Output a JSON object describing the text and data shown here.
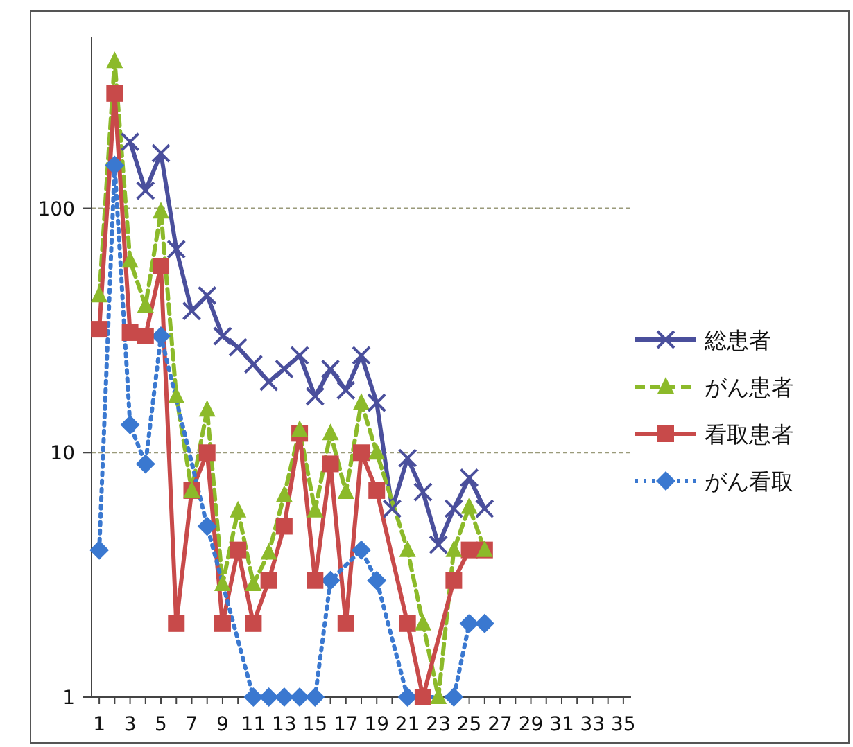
{
  "chart_data": {
    "type": "line",
    "log": "y",
    "ylim": [
      1,
      500
    ],
    "yticks": [
      1,
      10,
      100
    ],
    "xlim": [
      0.5,
      35.5
    ],
    "xticks": [
      1,
      {
        "value": 2,
        "label": null
      },
      3,
      {
        "value": 4,
        "label": null
      },
      5,
      {
        "value": 6,
        "label": null
      },
      7,
      {
        "value": 8,
        "label": null
      },
      9,
      {
        "value": 10,
        "label": null
      },
      11,
      {
        "value": 12,
        "label": null
      },
      13,
      {
        "value": 14,
        "label": null
      },
      15,
      {
        "value": 16,
        "label": null
      },
      17,
      {
        "value": 18,
        "label": null
      },
      19,
      {
        "value": 20,
        "label": null
      },
      21,
      {
        "value": 22,
        "label": null
      },
      23,
      {
        "value": 24,
        "label": null
      },
      25,
      {
        "value": 26,
        "label": null
      },
      27,
      {
        "value": 28,
        "label": null
      },
      29,
      {
        "value": 30,
        "label": null
      },
      31,
      {
        "value": 32,
        "label": null
      },
      33,
      {
        "value": 34,
        "label": null
      },
      35
    ],
    "grid": "y",
    "legend": "right",
    "series": [
      {
        "name": "総患者",
        "color": "#4a4f9c",
        "marker": "cross",
        "line_style": "solid",
        "x": [
          3,
          4,
          5,
          6,
          7,
          8,
          9,
          10,
          11,
          12,
          13,
          14,
          15,
          16,
          17,
          18,
          19,
          20,
          21,
          22,
          23,
          24,
          25,
          26
        ],
        "values": [
          187,
          118,
          168,
          68,
          38,
          44,
          30,
          27,
          23,
          19.5,
          22,
          25,
          17,
          22,
          18,
          25,
          16,
          5.9,
          9.5,
          6.9,
          4.2,
          5.9,
          7.9,
          5.9
        ]
      },
      {
        "name": "がん患者",
        "color": "#8cba2a",
        "marker": "triangle",
        "line_style": "dashed",
        "x": [
          1,
          2,
          3,
          4,
          5,
          6,
          7,
          8,
          9,
          10,
          11,
          12,
          13,
          14,
          15,
          16,
          17,
          18,
          19,
          21,
          22,
          23,
          24,
          25,
          26
        ],
        "values": [
          44,
          400,
          61,
          40,
          97,
          17,
          7,
          15,
          2.9,
          5.8,
          2.9,
          3.9,
          6.7,
          12.4,
          5.8,
          12,
          6.9,
          16,
          10,
          4,
          2,
          1,
          4,
          6,
          4
        ]
      },
      {
        "name": "看取患者",
        "color": "#c84a4a",
        "marker": "square",
        "line_style": "solid",
        "x": [
          1,
          2,
          3,
          4,
          5,
          6,
          7,
          8,
          9,
          10,
          11,
          12,
          13,
          14,
          15,
          16,
          17,
          18,
          19,
          21,
          22,
          24,
          25,
          26
        ],
        "values": [
          32,
          295,
          31,
          30,
          58,
          2,
          7,
          10,
          2,
          4,
          2,
          3,
          5,
          12,
          3,
          9,
          2,
          10,
          7,
          2,
          1,
          3,
          4,
          4
        ]
      },
      {
        "name": "がん看取",
        "color": "#3a78d0",
        "marker": "diamond",
        "line_style": "dotted",
        "x": [
          1,
          2,
          3,
          4,
          5,
          8,
          11,
          12,
          13,
          14,
          15,
          16,
          18,
          19,
          21,
          24,
          25,
          26
        ],
        "values": [
          4,
          150,
          13,
          9,
          30,
          5,
          1,
          1,
          1,
          1,
          1,
          3,
          4,
          3,
          1,
          1,
          2,
          2
        ]
      }
    ]
  }
}
